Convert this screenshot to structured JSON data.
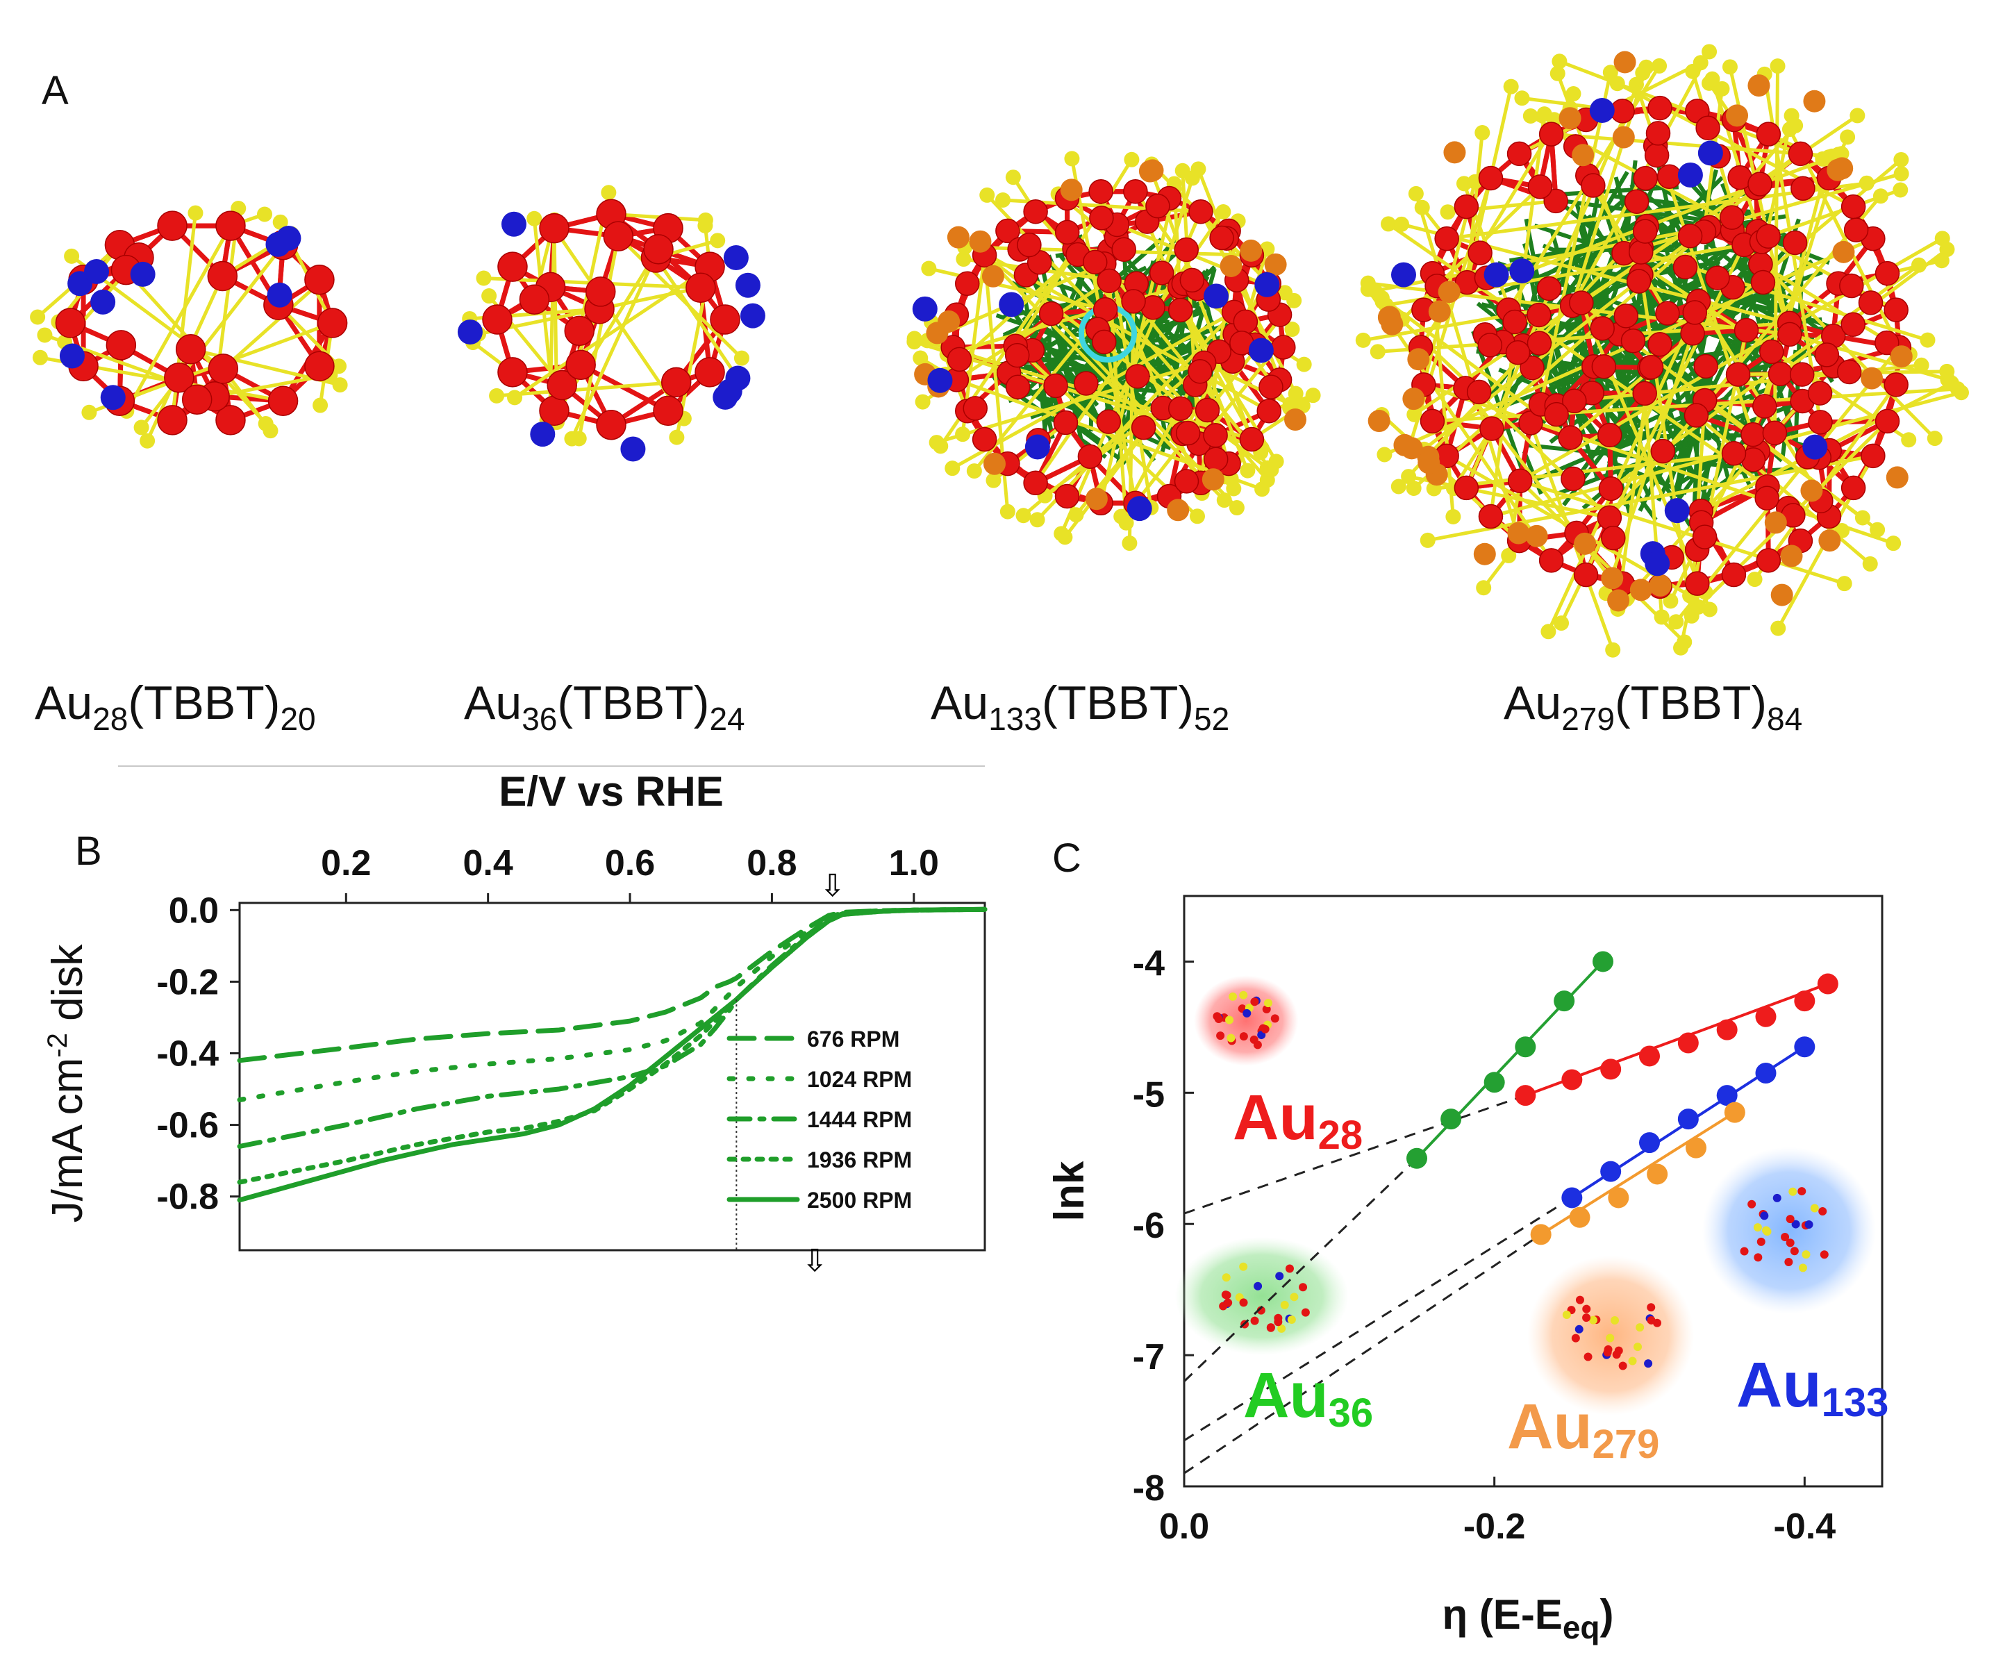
{
  "figure": {
    "panel_a": {
      "letter": "A",
      "clusters": [
        {
          "base": "Au",
          "n": "28",
          "ligand": "(TBBT)",
          "m": "20"
        },
        {
          "base": "Au",
          "n": "36",
          "ligand": "(TBBT)",
          "m": "24"
        },
        {
          "base": "Au",
          "n": "133",
          "ligand": "(TBBT)",
          "m": "52"
        },
        {
          "base": "Au",
          "n": "279",
          "ligand": "(TBBT)",
          "m": "84"
        }
      ]
    },
    "panel_b": {
      "letter": "B"
    },
    "panel_c": {
      "letter": "C",
      "tags": [
        {
          "base": "Au",
          "n": "28",
          "color": "#ee1c1c"
        },
        {
          "base": "Au",
          "n": "36",
          "color": "#22cc22"
        },
        {
          "base": "Au",
          "n": "279",
          "color": "#f39a4a"
        },
        {
          "base": "Au",
          "n": "133",
          "color": "#1c2fe0"
        }
      ]
    }
  },
  "colors": {
    "gold_red": "#e31414",
    "sulfur_yellow": "#e8e227",
    "blue_atom": "#1c1ccc",
    "green_bond": "#1e7f1e",
    "orange_atom": "#e07a18",
    "cyan_core": "#3fd6e0",
    "rde_green": "#1f9e2a",
    "c_green": "#24a032",
    "c_red": "#ee1c1c",
    "c_blue": "#1c2fe0",
    "c_orange": "#f39a2e"
  },
  "chart_data": [
    {
      "id": "B",
      "type": "line",
      "title": "",
      "xlabel": "E/V vs RHE",
      "ylabel": "J/mA cm-2 disk",
      "ylabel_base": "J/mA cm",
      "ylabel_sup": "-2",
      "ylabel_end": " disk",
      "xlim": [
        0.05,
        1.1
      ],
      "ylim": [
        -0.95,
        0.02
      ],
      "xticks": [
        0.2,
        0.4,
        0.6,
        0.8,
        1.0
      ],
      "xtick_labels": [
        "0.2",
        "0.4",
        "0.6",
        "0.8",
        "1.0"
      ],
      "yticks": [
        0.0,
        -0.2,
        -0.4,
        -0.6,
        -0.8
      ],
      "ytick_labels": [
        "0.0",
        "-0.2",
        "-0.4",
        "-0.6",
        "-0.8"
      ],
      "markers": {
        "half_wave_potential": 0.75,
        "onset_arrow_x": 0.885,
        "bottom_arrow_x": 0.86,
        "arrow_symbol": "⇩"
      },
      "series": [
        {
          "name": "676 RPM",
          "dash": "dash",
          "x": [
            0.05,
            0.2,
            0.3,
            0.4,
            0.5,
            0.6,
            0.65,
            0.7,
            0.72,
            0.74,
            0.75,
            0.8,
            0.85,
            0.88,
            0.9,
            0.95,
            1.0,
            1.05,
            1.1
          ],
          "y": [
            -0.42,
            -0.385,
            -0.36,
            -0.345,
            -0.335,
            -0.31,
            -0.285,
            -0.245,
            -0.215,
            -0.2,
            -0.19,
            -0.115,
            -0.05,
            -0.015,
            -0.006,
            -0.002,
            0.0,
            0.001,
            0.002
          ]
        },
        {
          "name": "1024 RPM",
          "dash": "dot-sparse",
          "x": [
            0.05,
            0.2,
            0.3,
            0.4,
            0.5,
            0.6,
            0.65,
            0.7,
            0.72,
            0.74,
            0.75,
            0.8,
            0.85,
            0.88,
            0.9,
            0.95,
            1.0,
            1.05,
            1.1
          ],
          "y": [
            -0.53,
            -0.48,
            -0.45,
            -0.43,
            -0.415,
            -0.39,
            -0.365,
            -0.315,
            -0.275,
            -0.235,
            -0.215,
            -0.13,
            -0.06,
            -0.02,
            -0.008,
            -0.002,
            0.0,
            0.001,
            0.002
          ]
        },
        {
          "name": "1444 RPM",
          "dash": "dash-dot",
          "x": [
            0.05,
            0.2,
            0.3,
            0.4,
            0.5,
            0.6,
            0.65,
            0.7,
            0.72,
            0.74,
            0.75,
            0.8,
            0.85,
            0.88,
            0.9,
            0.95,
            1.0,
            1.05,
            1.1
          ],
          "y": [
            -0.66,
            -0.6,
            -0.555,
            -0.52,
            -0.5,
            -0.465,
            -0.435,
            -0.375,
            -0.33,
            -0.28,
            -0.25,
            -0.155,
            -0.07,
            -0.025,
            -0.01,
            -0.003,
            0.0,
            0.001,
            0.002
          ]
        },
        {
          "name": "1936 RPM",
          "dash": "dot",
          "x": [
            0.05,
            0.2,
            0.3,
            0.4,
            0.45,
            0.5,
            0.55,
            0.6,
            0.65,
            0.7,
            0.72,
            0.74,
            0.75,
            0.8,
            0.85,
            0.88,
            0.9,
            0.95,
            1.0,
            1.05,
            1.1
          ],
          "y": [
            -0.76,
            -0.7,
            -0.655,
            -0.62,
            -0.61,
            -0.59,
            -0.56,
            -0.5,
            -0.43,
            -0.35,
            -0.31,
            -0.27,
            -0.25,
            -0.16,
            -0.075,
            -0.03,
            -0.012,
            -0.004,
            0.0,
            0.001,
            0.002
          ]
        },
        {
          "name": "2500 RPM",
          "dash": "solid",
          "x": [
            0.05,
            0.15,
            0.25,
            0.35,
            0.4,
            0.45,
            0.5,
            0.55,
            0.6,
            0.65,
            0.7,
            0.75,
            0.8,
            0.85,
            0.88,
            0.9,
            0.95,
            1.0,
            1.05,
            1.1
          ],
          "y": [
            -0.81,
            -0.755,
            -0.7,
            -0.655,
            -0.64,
            -0.625,
            -0.6,
            -0.555,
            -0.49,
            -0.41,
            -0.33,
            -0.25,
            -0.16,
            -0.075,
            -0.03,
            -0.012,
            -0.004,
            0.0,
            0.001,
            0.002
          ]
        }
      ]
    },
    {
      "id": "C",
      "type": "scatter",
      "xlabel": "η (E-Eeq)",
      "xlabel_base": "η (E-E",
      "xlabel_sub": "eq",
      "xlabel_end": ")",
      "ylabel": "lnk",
      "xlim": [
        0.0,
        -0.45
      ],
      "ylim": [
        -8.0,
        -3.5
      ],
      "xticks": [
        0.0,
        -0.2,
        -0.4
      ],
      "xtick_labels": [
        "0.0",
        "-0.2",
        "-0.4"
      ],
      "yticks": [
        -4,
        -5,
        -6,
        -7,
        -8
      ],
      "ytick_labels": [
        "-4",
        "-5",
        "-6",
        "-7",
        "-8"
      ],
      "series": [
        {
          "name": "Au28",
          "color": "#ee1c1c",
          "x": [
            -0.22,
            -0.25,
            -0.275,
            -0.3,
            -0.325,
            -0.35,
            -0.375,
            -0.4,
            -0.415
          ],
          "y": [
            -5.02,
            -4.9,
            -4.82,
            -4.72,
            -4.62,
            -4.52,
            -4.42,
            -4.3,
            -4.17
          ],
          "fit": {
            "x": [
              0.0,
              -0.415
            ],
            "y": [
              -5.92,
              -4.17
            ]
          }
        },
        {
          "name": "Au36",
          "color": "#24a032",
          "x": [
            -0.15,
            -0.172,
            -0.2,
            -0.22,
            -0.245,
            -0.27
          ],
          "y": [
            -5.5,
            -5.2,
            -4.92,
            -4.65,
            -4.3,
            -4.0
          ],
          "fit": {
            "x": [
              0.0,
              -0.27
            ],
            "y": [
              -7.2,
              -4.0
            ]
          }
        },
        {
          "name": "Au133",
          "color": "#1c2fe0",
          "x": [
            -0.25,
            -0.275,
            -0.3,
            -0.325,
            -0.35,
            -0.375,
            -0.4
          ],
          "y": [
            -5.8,
            -5.6,
            -5.38,
            -5.2,
            -5.02,
            -4.85,
            -4.65
          ],
          "fit": {
            "x": [
              0.0,
              -0.4
            ],
            "y": [
              -7.65,
              -4.65
            ]
          }
        },
        {
          "name": "Au279",
          "color": "#f39a2e",
          "x": [
            -0.23,
            -0.255,
            -0.28,
            -0.305,
            -0.33,
            -0.355
          ],
          "y": [
            -6.08,
            -5.95,
            -5.8,
            -5.62,
            -5.42,
            -5.15
          ],
          "fit": {
            "x": [
              0.0,
              -0.355
            ],
            "y": [
              -7.9,
              -5.15
            ]
          }
        }
      ]
    }
  ]
}
